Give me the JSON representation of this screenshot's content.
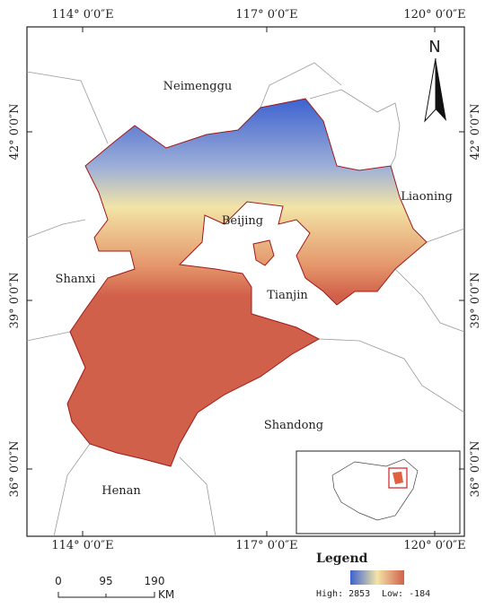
{
  "map": {
    "lon_labels": [
      "114° 0′0″E",
      "117° 0′0″E",
      "120° 0′0″E"
    ],
    "lat_labels": [
      "42° 0′0″N",
      "39° 0′0″N",
      "36° 0′0″N"
    ],
    "regions": [
      "Neimenggu",
      "Beijing",
      "Liaoning",
      "Shanxi",
      "Tianjin",
      "Shandong",
      "Henan"
    ],
    "north": "N",
    "legend": {
      "title": "Legend",
      "high": "High: 2853",
      "low": "Low: -184"
    },
    "scale": {
      "ticks": [
        "0",
        "95",
        "190"
      ],
      "unit": "KM"
    }
  }
}
